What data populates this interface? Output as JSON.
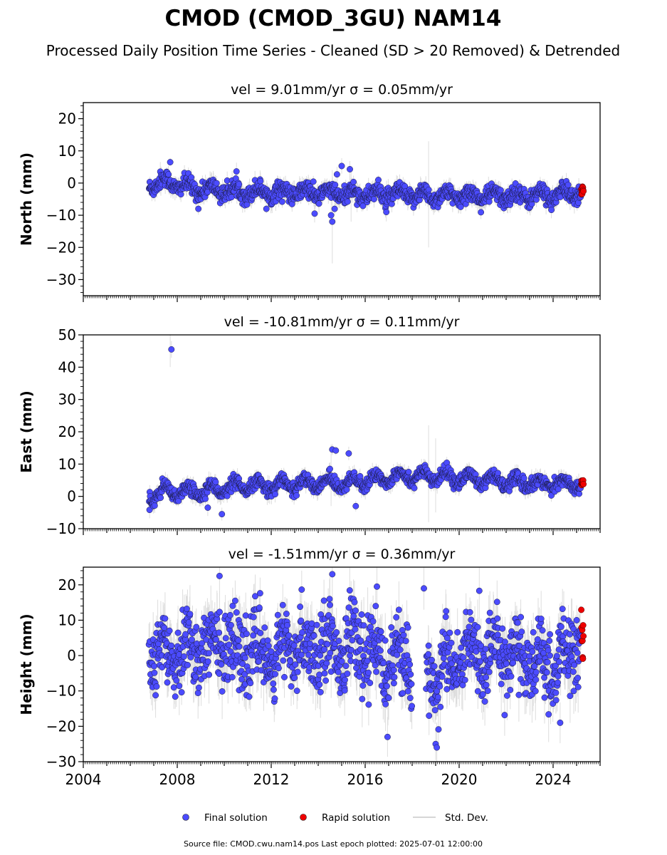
{
  "title": "CMOD (CMOD_3GU) NAM14",
  "subtitle": "Processed Daily Position Time Series - Cleaned (SD > 20 Removed) & Detrended",
  "colors": {
    "final": "#4b4bff",
    "rapid": "#ee0000",
    "stddev": "#b4b4b4"
  },
  "legend": {
    "final_label": "Final solution",
    "rapid_label": "Rapid solution",
    "stddev_label": "Std. Dev.",
    "placement": "bottom-center"
  },
  "footer": "Source file: CMOD.cwu.nam14.pos  Last epoch plotted: 2025-07-01 12:00:00",
  "chart_data": [
    {
      "type": "scatter",
      "panel_title": "vel = 9.01mm/yr   σ = 0.05mm/yr",
      "ylabel": "North (mm)",
      "ylim": [
        -35,
        25
      ],
      "yticks": [
        -30,
        -20,
        -10,
        0,
        10,
        20
      ],
      "xlim": [
        2004,
        2026
      ],
      "xticks": [
        2004,
        2008,
        2012,
        2016,
        2020,
        2024
      ],
      "xticks_labeled": false,
      "noise_sd": 1.3,
      "error_sd": 2.0,
      "signal": [
        [
          2006.8,
          -0.5
        ],
        [
          2007.5,
          0.5
        ],
        [
          2008.5,
          -1.5
        ],
        [
          2010.0,
          -2.5
        ],
        [
          2012.0,
          -2.8
        ],
        [
          2014.0,
          -3.0
        ],
        [
          2016.0,
          -3.5
        ],
        [
          2018.0,
          -3.8
        ],
        [
          2020.0,
          -4.0
        ],
        [
          2022.0,
          -4.0
        ],
        [
          2024.0,
          -3.8
        ],
        [
          2025.1,
          -3.0
        ]
      ],
      "seasonal_amp": 1.4,
      "gaps": [],
      "final_range": [
        2006.8,
        2025.18
      ],
      "outliers": [
        [
          2007.7,
          6.5
        ],
        [
          2008.9,
          -8
        ],
        [
          2013.85,
          -9.5
        ],
        [
          2014.6,
          -12
        ],
        [
          2014.55,
          -10
        ],
        [
          2014.7,
          -8
        ],
        [
          2014.8,
          2.7
        ],
        [
          2015.0,
          5.3
        ],
        [
          2015.35,
          4.3
        ],
        [
          2016.9,
          -9
        ]
      ],
      "spikes": [
        [
          2014.6,
          -25,
          4
        ],
        [
          2018.7,
          -20,
          13
        ],
        [
          2015.4,
          -12,
          5
        ]
      ],
      "rapid_range": [
        2025.2,
        2025.5
      ],
      "rapid_y": [
        -1,
        -4
      ]
    },
    {
      "type": "scatter",
      "panel_title": "vel = -10.81mm/yr   σ = 0.11mm/yr",
      "ylabel": "East (mm)",
      "ylim": [
        -10,
        50
      ],
      "yticks": [
        -10,
        0,
        10,
        20,
        30,
        40,
        50
      ],
      "xlim": [
        2004,
        2026
      ],
      "xticks": [
        2004,
        2008,
        2012,
        2016,
        2020,
        2024
      ],
      "xticks_labeled": false,
      "noise_sd": 1.0,
      "error_sd": 1.8,
      "signal": [
        [
          2006.8,
          -0.5
        ],
        [
          2007.5,
          1.5
        ],
        [
          2008.0,
          1.0
        ],
        [
          2010.0,
          2.5
        ],
        [
          2012.0,
          3.5
        ],
        [
          2014.0,
          4.0
        ],
        [
          2016.0,
          4.5
        ],
        [
          2017.5,
          6.5
        ],
        [
          2019.0,
          6.0
        ],
        [
          2020.5,
          5.5
        ],
        [
          2022.0,
          4.5
        ],
        [
          2023.5,
          4.0
        ],
        [
          2025.1,
          3.8
        ]
      ],
      "seasonal_amp": 1.6,
      "gaps": [],
      "final_range": [
        2006.8,
        2025.18
      ],
      "outliers": [
        [
          2007.75,
          45.5
        ],
        [
          2014.6,
          14.5
        ],
        [
          2014.75,
          14.2
        ],
        [
          2015.3,
          13.3
        ],
        [
          2009.9,
          -5.5
        ],
        [
          2009.3,
          -3.5
        ],
        [
          2014.5,
          8.5
        ],
        [
          2015.6,
          -3
        ]
      ],
      "spikes": [
        [
          2007.7,
          40,
          50
        ],
        [
          2014.55,
          -3,
          16
        ],
        [
          2018.7,
          -8,
          22
        ],
        [
          2019.0,
          -5,
          18
        ]
      ],
      "rapid_range": [
        2025.2,
        2025.5
      ],
      "rapid_y": [
        3.5,
        5
      ]
    },
    {
      "type": "scatter",
      "panel_title": "vel = -1.51mm/yr   σ = 0.36mm/yr",
      "ylabel": "Height (mm)",
      "ylim": [
        -30,
        25
      ],
      "yticks": [
        -30,
        -20,
        -10,
        0,
        10,
        20
      ],
      "xlim": [
        2004,
        2026
      ],
      "xticks": [
        2004,
        2008,
        2012,
        2016,
        2020,
        2024
      ],
      "xtick_labels": [
        "2004",
        "2008",
        "2012",
        "2016",
        "2020",
        "2024"
      ],
      "xticks_labeled": true,
      "noise_sd": 5.0,
      "error_sd": 5.5,
      "signal": [
        [
          2006.8,
          1
        ],
        [
          2010.0,
          3
        ],
        [
          2012.0,
          0
        ],
        [
          2014.0,
          3
        ],
        [
          2016.0,
          2
        ],
        [
          2017.5,
          -3
        ],
        [
          2019.0,
          -5
        ],
        [
          2020.5,
          0
        ],
        [
          2022.0,
          1
        ],
        [
          2023.5,
          -3
        ],
        [
          2024.5,
          -2
        ],
        [
          2025.1,
          5
        ]
      ],
      "seasonal_amp": 4.0,
      "gaps": [
        [
          2018.0,
          2018.6
        ]
      ],
      "final_range": [
        2006.8,
        2025.18
      ],
      "outliers": [
        [
          2009.8,
          22.5
        ],
        [
          2014.6,
          23
        ],
        [
          2016.95,
          -23
        ],
        [
          2019.0,
          -25
        ],
        [
          2019.05,
          -26
        ],
        [
          2018.5,
          19
        ],
        [
          2016.5,
          19.5
        ],
        [
          2024.3,
          -19
        ]
      ],
      "spikes": [],
      "rapid_range": [
        2025.2,
        2025.5
      ],
      "rapid_y": [
        -1.5,
        13.5
      ]
    }
  ]
}
